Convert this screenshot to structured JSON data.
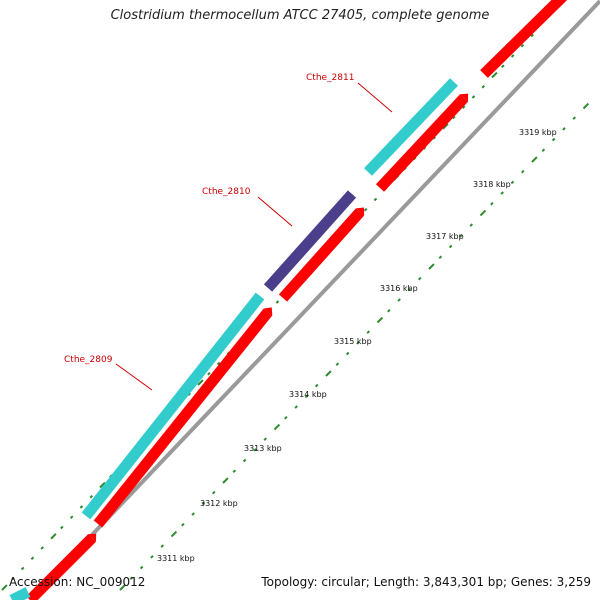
{
  "title": "Clostridium thermocellum ATCC 27405, complete genome",
  "footer": {
    "accession": "Accession: NC_009012",
    "topology": "Topology: circular; Length: 3,843,301 bp; Genes: 3,259"
  },
  "colors": {
    "reverse_feature": "#ff0000",
    "forward_feature": "#33cccc",
    "highlight_feature": "#4b3f8c",
    "backbone": "#9a9a9a",
    "ticks": "#2e8b2e",
    "gene_label": "#cc0000",
    "leader_line": "#cc0000"
  },
  "gene_labels": [
    {
      "name": "Cthe_2809"
    },
    {
      "name": "Cthe_2810"
    },
    {
      "name": "Cthe_2811"
    }
  ],
  "axis": {
    "unit": "kbp",
    "tick_labels": [
      "3311 kbp",
      "3312 kbp",
      "3313 kbp",
      "3314 kbp",
      "3315 kbp",
      "3316 kbp",
      "3317 kbp",
      "3318 kbp",
      "3319 kbp"
    ]
  }
}
